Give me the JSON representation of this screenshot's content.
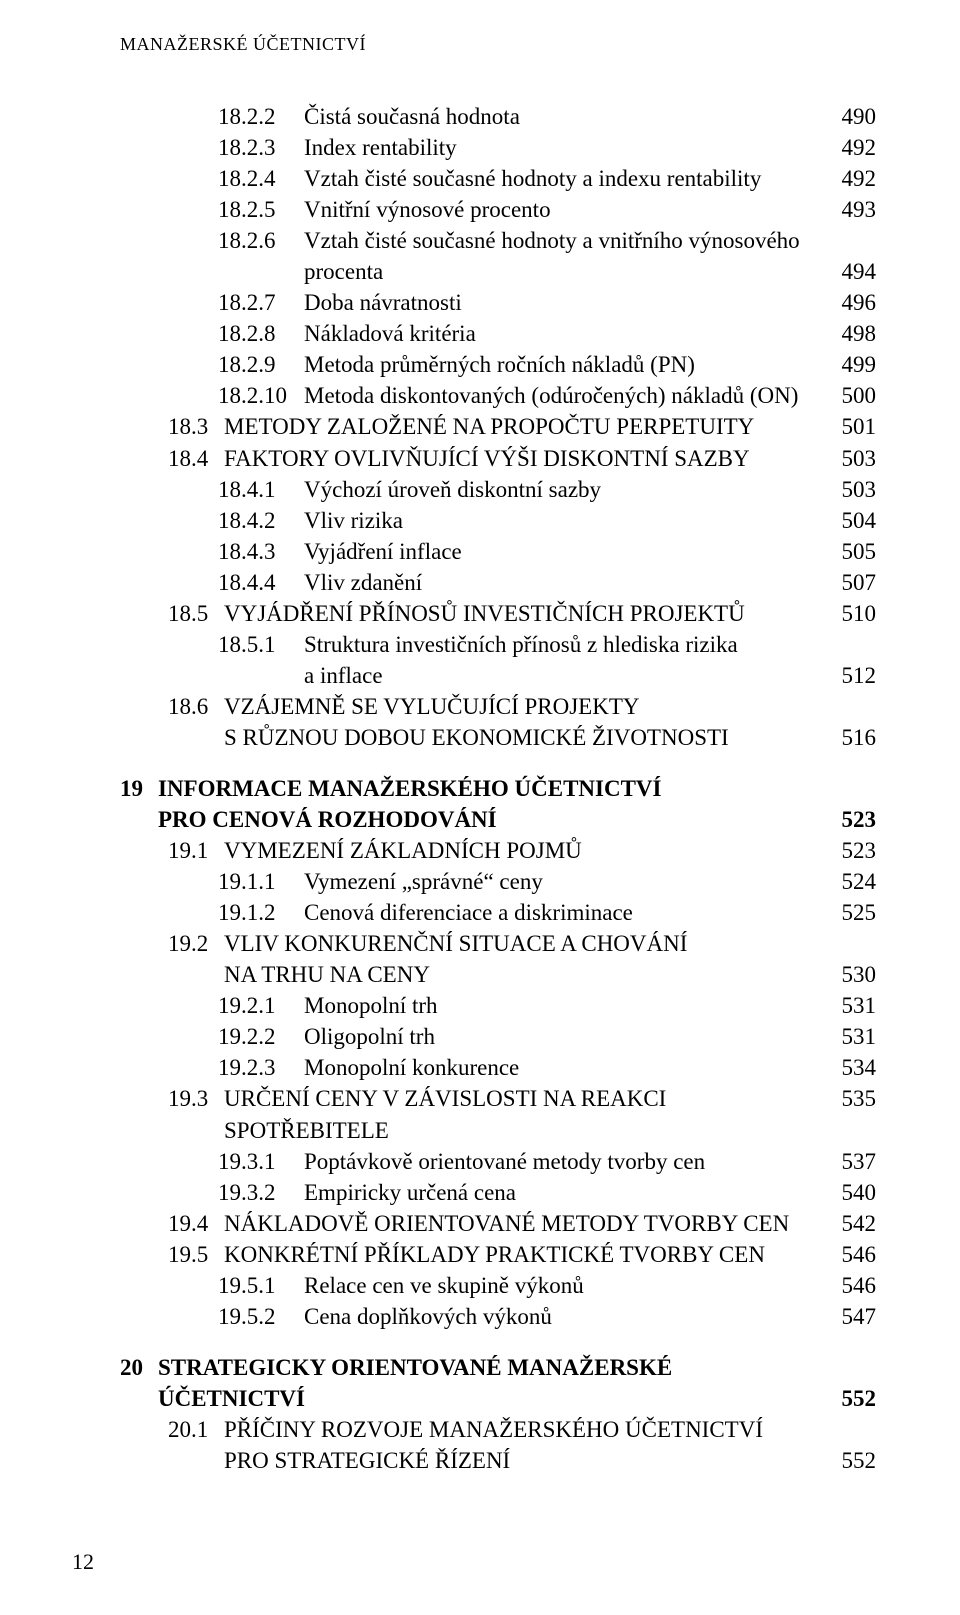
{
  "header": "MANAŽERSKÉ ÚČETNICTVÍ",
  "footer": "12",
  "entries": [
    {
      "level": 2,
      "num": "18.2.2",
      "title": "Čistá současná hodnota",
      "page": "490"
    },
    {
      "level": 2,
      "num": "18.2.3",
      "title": "Index rentability",
      "page": "492"
    },
    {
      "level": 2,
      "num": "18.2.4",
      "title": "Vztah čisté současné hodnoty a indexu rentability",
      "page": "492"
    },
    {
      "level": 2,
      "num": "18.2.5",
      "title": "Vnitřní výnosové procento",
      "page": "493"
    },
    {
      "level": 2,
      "num": "18.2.6",
      "title": "Vztah čisté současné hodnoty a vnitřního výnosového",
      "page": ""
    },
    {
      "level": "c2",
      "num": "",
      "title": "procenta",
      "page": "494"
    },
    {
      "level": 2,
      "num": "18.2.7",
      "title": "Doba návratnosti",
      "page": "496"
    },
    {
      "level": 2,
      "num": "18.2.8",
      "title": "Nákladová kritéria",
      "page": "498"
    },
    {
      "level": 2,
      "num": "18.2.9",
      "title": "Metoda průměrných ročních nákladů (PN)",
      "page": "499"
    },
    {
      "level": 2,
      "num": "18.2.10",
      "title": "Metoda diskontovaných (odúročených) nákladů (ON)",
      "page": "500"
    },
    {
      "level": 1,
      "num": "18.3",
      "title": "METODY ZALOŽENÉ NA PROPOČTU PERPETUITY",
      "page": "501"
    },
    {
      "level": 1,
      "num": "18.4",
      "title": "FAKTORY OVLIVŇUJÍCÍ VÝŠI DISKONTNÍ SAZBY",
      "page": "503"
    },
    {
      "level": 2,
      "num": "18.4.1",
      "title": "Výchozí úroveň diskontní sazby",
      "page": "503"
    },
    {
      "level": 2,
      "num": "18.4.2",
      "title": "Vliv rizika",
      "page": "504"
    },
    {
      "level": 2,
      "num": "18.4.3",
      "title": "Vyjádření inflace",
      "page": "505"
    },
    {
      "level": 2,
      "num": "18.4.4",
      "title": "Vliv zdanění",
      "page": "507"
    },
    {
      "level": 1,
      "num": "18.5",
      "title": "VYJÁDŘENÍ PŘÍNOSŮ INVESTIČNÍCH PROJEKTŮ",
      "page": "510"
    },
    {
      "level": 2,
      "num": "18.5.1",
      "title": "Struktura investičních přínosů z hlediska rizika",
      "page": ""
    },
    {
      "level": "c2",
      "num": "",
      "title": "a inflace",
      "page": "512"
    },
    {
      "level": 1,
      "num": "18.6",
      "title": "VZÁJEMNĚ SE VYLUČUJÍCÍ PROJEKTY",
      "page": ""
    },
    {
      "level": "c1",
      "num": "",
      "title": "S RŮZNOU DOBOU EKONOMICKÉ ŽIVOTNOSTI",
      "page": "516"
    },
    {
      "level": "gap"
    },
    {
      "level": 0,
      "num": "19",
      "title": "INFORMACE MANAŽERSKÉHO ÚČETNICTVÍ",
      "page": ""
    },
    {
      "level": "c0b",
      "num": "",
      "title": "PRO CENOVÁ ROZHODOVÁNÍ",
      "page": "523"
    },
    {
      "level": 1,
      "num": "19.1",
      "title": "VYMEZENÍ ZÁKLADNÍCH POJMŮ",
      "page": "523"
    },
    {
      "level": 2,
      "num": "19.1.1",
      "title": "Vymezení „správné“ ceny",
      "page": "524"
    },
    {
      "level": 2,
      "num": "19.1.2",
      "title": "Cenová diferenciace a diskriminace",
      "page": "525"
    },
    {
      "level": 1,
      "num": "19.2",
      "title": "VLIV KONKURENČNÍ SITUACE A CHOVÁNÍ",
      "page": ""
    },
    {
      "level": "c1",
      "num": "",
      "title": "NA TRHU NA CENY",
      "page": "530"
    },
    {
      "level": 2,
      "num": "19.2.1",
      "title": "Monopolní trh",
      "page": "531"
    },
    {
      "level": 2,
      "num": "19.2.2",
      "title": "Oligopolní trh",
      "page": "531"
    },
    {
      "level": 2,
      "num": "19.2.3",
      "title": "Monopolní konkurence",
      "page": "534"
    },
    {
      "level": 1,
      "num": "19.3",
      "title": "URČENÍ CENY V ZÁVISLOSTI NA REAKCI SPOTŘEBITELE",
      "page": "535"
    },
    {
      "level": 2,
      "num": "19.3.1",
      "title": "Poptávkově orientované metody tvorby cen",
      "page": "537"
    },
    {
      "level": 2,
      "num": "19.3.2",
      "title": "Empiricky určená cena",
      "page": "540"
    },
    {
      "level": 1,
      "num": "19.4",
      "title": "NÁKLADOVĚ ORIENTOVANÉ METODY TVORBY CEN",
      "page": "542"
    },
    {
      "level": 1,
      "num": "19.5",
      "title": "KONKRÉTNÍ PŘÍKLADY PRAKTICKÉ TVORBY CEN",
      "page": "546"
    },
    {
      "level": 2,
      "num": "19.5.1",
      "title": "Relace cen ve skupině výkonů",
      "page": "546"
    },
    {
      "level": 2,
      "num": "19.5.2",
      "title": "Cena doplňkových výkonů",
      "page": "547"
    },
    {
      "level": "gap"
    },
    {
      "level": 0,
      "num": "20",
      "title": "STRATEGICKY ORIENTOVANÉ MANAŽERSKÉ",
      "page": ""
    },
    {
      "level": "c0b",
      "num": "",
      "title": "ÚČETNICTVÍ",
      "page": "552"
    },
    {
      "level": 1,
      "num": "20.1",
      "title": "PŘÍČINY ROZVOJE MANAŽERSKÉHO ÚČETNICTVÍ",
      "page": ""
    },
    {
      "level": "c1",
      "num": "",
      "title": "PRO STRATEGICKÉ ŘÍZENÍ",
      "page": "552"
    }
  ]
}
